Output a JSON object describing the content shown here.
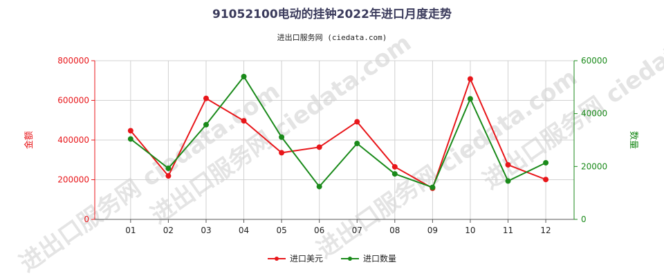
{
  "title": "91052100电动的挂钟2022年进口月度走势",
  "subtitle": "进出口服务网 (ciedata.com)",
  "watermark": "进出口服务网 ciedata.com",
  "colors": {
    "red": "#e8161a",
    "green": "#1a8a1a",
    "grid": "#d0d0d0"
  },
  "chart_data": {
    "type": "line",
    "categories": [
      "01",
      "02",
      "03",
      "04",
      "05",
      "06",
      "07",
      "08",
      "09",
      "10",
      "11",
      "12"
    ],
    "y_left": {
      "label": "金额",
      "ylim": [
        0,
        800000
      ],
      "ticks": [
        0,
        200000,
        400000,
        600000,
        800000
      ]
    },
    "y_right": {
      "label": "数量",
      "ylim": [
        0,
        60000
      ],
      "ticks": [
        0,
        20000,
        40000,
        60000
      ]
    },
    "series": [
      {
        "name": "进口美元",
        "axis": "left",
        "color": "#e8161a",
        "values": [
          447000,
          219000,
          610000,
          497000,
          336000,
          364000,
          492000,
          265000,
          157000,
          708000,
          275000,
          201000
        ]
      },
      {
        "name": "进口数量",
        "axis": "right",
        "color": "#1a8a1a",
        "values": [
          30400,
          19300,
          35800,
          54000,
          31100,
          12400,
          28700,
          17200,
          12100,
          45600,
          14500,
          21400
        ]
      }
    ],
    "grid": true,
    "legend": "bottom-center"
  }
}
